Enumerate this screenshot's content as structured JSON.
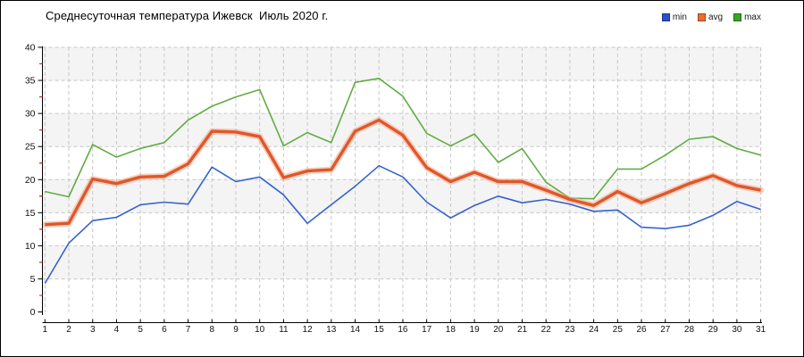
{
  "title": "Среднесуточная температура Ижевск  Июль 2020 г.",
  "legend": [
    {
      "label": "min",
      "color": "#2d50cc"
    },
    {
      "label": "avg",
      "color": "#ed6d2d"
    },
    {
      "label": "max",
      "color": "#38a622"
    }
  ],
  "chart_data": {
    "type": "line",
    "title": "Среднесуточная температура Ижевск  Июль 2020 г.",
    "xlabel": "",
    "ylabel": "",
    "categories": [
      1,
      2,
      3,
      4,
      5,
      6,
      7,
      8,
      9,
      10,
      11,
      12,
      13,
      14,
      15,
      16,
      17,
      18,
      19,
      20,
      21,
      22,
      23,
      24,
      25,
      26,
      27,
      28,
      29,
      30,
      31
    ],
    "series": [
      {
        "name": "max",
        "color": "#61ad42",
        "width": 1.6,
        "values": [
          18.2,
          17.4,
          25.3,
          23.4,
          24.7,
          25.6,
          29.0,
          31.1,
          32.5,
          33.6,
          25.1,
          27.1,
          25.6,
          34.7,
          35.3,
          32.6,
          27.0,
          25.1,
          26.9,
          22.6,
          24.7,
          19.6,
          17.2,
          17.1,
          21.6,
          21.6,
          23.7,
          26.1,
          26.5,
          24.7,
          23.7
        ]
      },
      {
        "name": "min",
        "color": "#3563cd",
        "width": 1.6,
        "values": [
          4.3,
          10.4,
          13.8,
          14.3,
          16.2,
          16.6,
          16.3,
          21.9,
          19.7,
          20.4,
          17.7,
          13.4,
          16.2,
          19.0,
          22.1,
          20.4,
          16.6,
          14.2,
          16.1,
          17.5,
          16.5,
          17.0,
          16.3,
          15.2,
          15.4,
          12.8,
          12.6,
          13.1,
          14.6,
          16.7,
          15.5
        ]
      },
      {
        "name": "avg",
        "color": "#e0572b",
        "width": 3.4,
        "halo": "#f3ab8a",
        "values": [
          13.2,
          13.4,
          20.1,
          19.4,
          20.4,
          20.5,
          22.4,
          27.3,
          27.2,
          26.5,
          20.3,
          21.3,
          21.5,
          27.3,
          29.0,
          26.7,
          21.8,
          19.7,
          21.1,
          19.7,
          19.7,
          18.4,
          17.0,
          16.1,
          18.2,
          16.5,
          17.9,
          19.4,
          20.6,
          19.1,
          18.4
        ]
      }
    ],
    "ylim": [
      0,
      40
    ],
    "y_major_step": 5,
    "y_minor_step": 2.5,
    "y_minor_tick_color": "#cc2222",
    "band_fill": "#f4f4f4",
    "gridline_color": "#c6c6c6",
    "grid": "dashed",
    "legend_position": "top-right"
  }
}
